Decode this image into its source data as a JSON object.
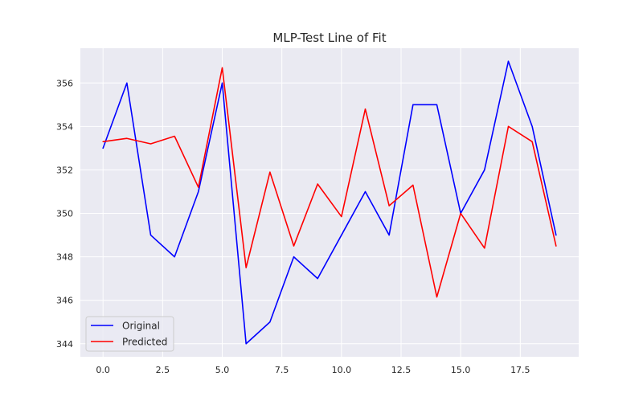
{
  "chart_data": {
    "type": "line",
    "title": "MLP-Test Line of Fit",
    "xlabel": "",
    "ylabel": "",
    "x": [
      0,
      1,
      2,
      3,
      4,
      5,
      6,
      7,
      8,
      9,
      10,
      11,
      12,
      13,
      14,
      15,
      16,
      17,
      18,
      19
    ],
    "xlim": [
      -0.95,
      19.95
    ],
    "ylim": [
      343.4,
      357.6
    ],
    "xticks": [
      0.0,
      2.5,
      5.0,
      7.5,
      10.0,
      12.5,
      15.0,
      17.5
    ],
    "xtick_labels": [
      "0.0",
      "2.5",
      "5.0",
      "7.5",
      "10.0",
      "12.5",
      "15.0",
      "17.5"
    ],
    "yticks": [
      344,
      346,
      348,
      350,
      352,
      354,
      356
    ],
    "ytick_labels": [
      "344",
      "346",
      "348",
      "350",
      "352",
      "354",
      "356"
    ],
    "grid": true,
    "background_color": "#eaeaf2",
    "grid_color": "#ffffff",
    "legend_position": "lower-left",
    "series": [
      {
        "name": "Original",
        "color": "#0000ff",
        "values": [
          353,
          356,
          349,
          348,
          351,
          356,
          344,
          345,
          348,
          347,
          349,
          351,
          349,
          355,
          355,
          350,
          352,
          357,
          354,
          349
        ]
      },
      {
        "name": "Predicted",
        "color": "#ff0000",
        "values": [
          353.3,
          353.45,
          353.2,
          353.55,
          351.2,
          356.7,
          347.5,
          351.9,
          348.5,
          351.35,
          349.85,
          354.8,
          350.35,
          351.3,
          346.15,
          350.0,
          348.4,
          354.0,
          353.3,
          348.5
        ]
      }
    ]
  }
}
